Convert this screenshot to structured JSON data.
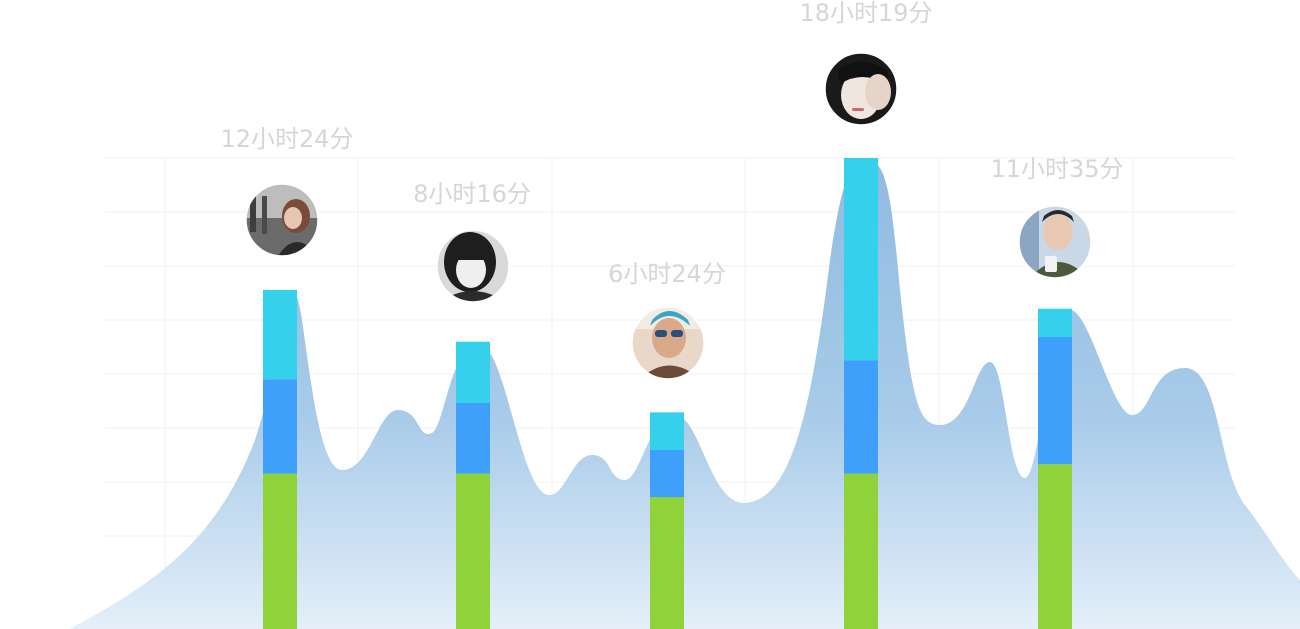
{
  "colors": {
    "area_top": "#8fbbe0",
    "area_bottom": "#e4eff9",
    "segment_bottom": "#8fd23a",
    "segment_middle": "#3fa0fb",
    "segment_top": "#35d0ec",
    "label": "#d6d6d6"
  },
  "chart_data": {
    "type": "bar",
    "stacked": true,
    "grid": true,
    "categories": [
      "12小时24分",
      "8小时16分",
      "6小时24分",
      "18小时19分",
      "11小时35分"
    ],
    "ylim": [
      0,
      100
    ],
    "series": [
      {
        "color": "#8fd23a",
        "values": [
          33,
          33,
          28,
          33,
          35
        ]
      },
      {
        "color": "#3fa0fb",
        "values": [
          20,
          15,
          10,
          24,
          27
        ]
      },
      {
        "color": "#35d0ec",
        "values": [
          19,
          13,
          8,
          43,
          6
        ]
      }
    ],
    "avatars": [
      "person-1-avatar",
      "person-2-avatar",
      "person-3-avatar",
      "person-4-avatar",
      "person-5-avatar"
    ]
  }
}
